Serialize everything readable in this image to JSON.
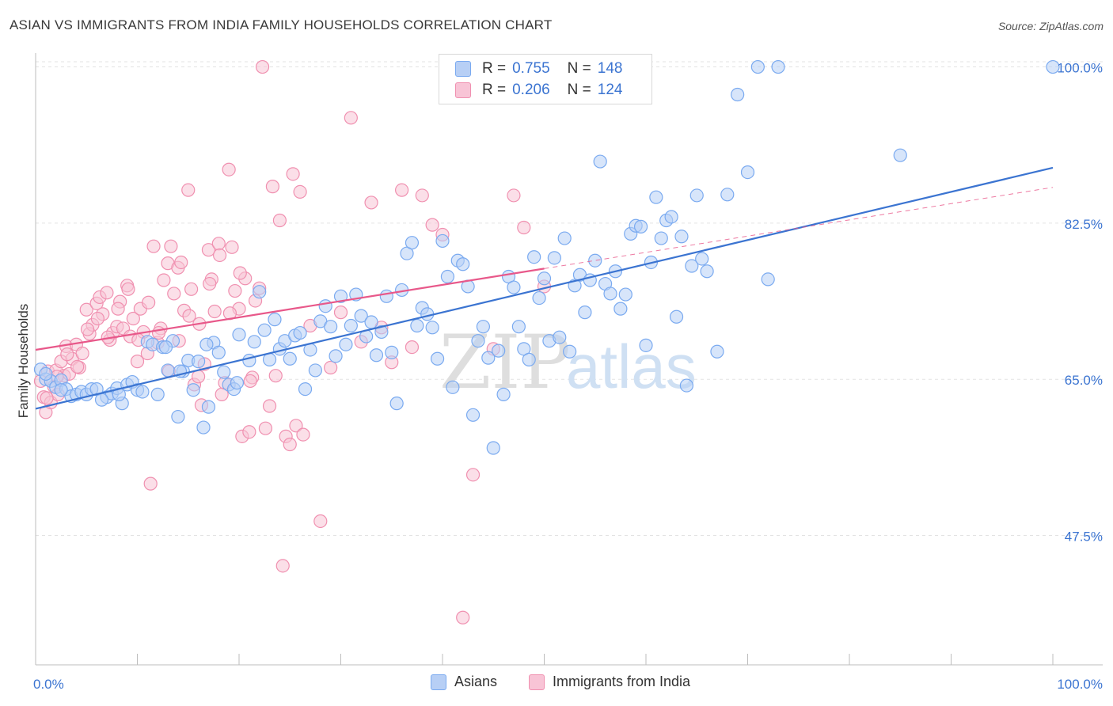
{
  "header": {
    "title": "ASIAN VS IMMIGRANTS FROM INDIA FAMILY HOUSEHOLDS CORRELATION CHART",
    "source": "Source: ZipAtlas.com"
  },
  "legend": {
    "rows": [
      {
        "r_label": "R =",
        "r_value": "0.755",
        "n_label": "N =",
        "n_value": "148",
        "color": "#7aaaf0",
        "fill": "#b7cff5"
      },
      {
        "r_label": "R =",
        "r_value": "0.206",
        "n_label": "N =",
        "n_value": "124",
        "color": "#f090b0",
        "fill": "#f8c4d6"
      }
    ]
  },
  "bottom_legend": [
    {
      "label": "Asians",
      "color": "#7aaaf0",
      "fill": "#b7cff5"
    },
    {
      "label": "Immigrants from India",
      "color": "#f090b0",
      "fill": "#f8c4d6"
    }
  ],
  "watermark": {
    "zip": "ZIP",
    "atlas": "atlas"
  },
  "chart_data": {
    "type": "scatter",
    "ylabel": "Family Households",
    "xlim": [
      0,
      100
    ],
    "ylim": [
      33,
      102
    ],
    "x_tick_labels": [
      "0.0%",
      "100.0%"
    ],
    "y_ticks": [
      47.5,
      65.0,
      82.5,
      100.0
    ],
    "y_tick_labels": [
      "47.5%",
      "65.0%",
      "82.5%",
      "100.0%"
    ],
    "grid": true,
    "series": [
      {
        "name": "Asians",
        "color": "#3b74d1",
        "point_color": "#7aaaf0",
        "trend": {
          "x0": 0,
          "y0": 61.7,
          "x1": 100,
          "y1": 88.7
        },
        "points": [
          [
            0.5,
            66.1
          ],
          [
            1,
            65
          ],
          [
            1.5,
            64.8
          ],
          [
            2,
            64.1
          ],
          [
            2.5,
            64.9
          ],
          [
            3,
            63.9
          ],
          [
            3.5,
            63.1
          ],
          [
            4,
            63.3
          ],
          [
            4.5,
            63.6
          ],
          [
            5,
            63.3
          ],
          [
            5.5,
            63.9
          ],
          [
            6,
            63.9
          ],
          [
            7,
            63
          ],
          [
            7.5,
            63.4
          ],
          [
            8,
            64
          ],
          [
            8.5,
            62.3
          ],
          [
            9,
            64.4
          ],
          [
            9.5,
            64.7
          ],
          [
            10,
            63.8
          ],
          [
            10.5,
            63.6
          ],
          [
            11,
            69.2
          ],
          [
            11.5,
            68.9
          ],
          [
            12,
            63.3
          ],
          [
            12.5,
            68.6
          ],
          [
            13,
            66
          ],
          [
            13.5,
            69.3
          ],
          [
            14,
            60.8
          ],
          [
            14.5,
            65.9
          ],
          [
            15,
            67.1
          ],
          [
            15.5,
            63.8
          ],
          [
            16,
            67
          ],
          [
            16.5,
            59.6
          ],
          [
            17,
            61.9
          ],
          [
            17.5,
            69.1
          ],
          [
            18,
            68
          ],
          [
            18.5,
            65.8
          ],
          [
            19,
            64.4
          ],
          [
            19.5,
            63.9
          ],
          [
            20,
            70
          ],
          [
            21,
            67.1
          ],
          [
            21.5,
            69.2
          ],
          [
            22,
            74.8
          ],
          [
            22.5,
            70.5
          ],
          [
            23,
            67.2
          ],
          [
            23.5,
            71.7
          ],
          [
            24,
            68.4
          ],
          [
            24.5,
            69.3
          ],
          [
            25,
            67.3
          ],
          [
            25.5,
            69.9
          ],
          [
            26,
            70.2
          ],
          [
            26.5,
            63.9
          ],
          [
            27,
            68.3
          ],
          [
            27.5,
            66
          ],
          [
            28,
            71.5
          ],
          [
            28.5,
            73.2
          ],
          [
            29,
            70.9
          ],
          [
            29.5,
            67.6
          ],
          [
            30,
            74.3
          ],
          [
            30.5,
            68.9
          ],
          [
            31,
            71
          ],
          [
            31.5,
            74.5
          ],
          [
            32,
            72.1
          ],
          [
            32.5,
            69.8
          ],
          [
            33,
            71.4
          ],
          [
            33.5,
            67.7
          ],
          [
            34,
            70.3
          ],
          [
            34.5,
            74.3
          ],
          [
            35,
            68
          ],
          [
            35.5,
            62.3
          ],
          [
            36,
            75
          ],
          [
            36.5,
            79.1
          ],
          [
            37,
            80.3
          ],
          [
            37.5,
            71
          ],
          [
            38,
            73
          ],
          [
            38.5,
            72.3
          ],
          [
            39,
            70.8
          ],
          [
            39.5,
            67.3
          ],
          [
            40,
            80.5
          ],
          [
            40.5,
            76.5
          ],
          [
            41,
            64.1
          ],
          [
            41.5,
            78.3
          ],
          [
            42,
            77.9
          ],
          [
            42.5,
            75.4
          ],
          [
            43,
            61
          ],
          [
            43.5,
            69.3
          ],
          [
            44,
            70.9
          ],
          [
            44.5,
            67.4
          ],
          [
            45,
            57.3
          ],
          [
            45.5,
            68.2
          ],
          [
            46,
            63.3
          ],
          [
            46.5,
            76.5
          ],
          [
            47,
            75.3
          ],
          [
            47.5,
            70.9
          ],
          [
            48,
            68.4
          ],
          [
            48.5,
            67.2
          ],
          [
            49,
            78.7
          ],
          [
            49.5,
            74.1
          ],
          [
            50,
            76.3
          ],
          [
            50.5,
            69.3
          ],
          [
            51,
            78.6
          ],
          [
            51.5,
            69.7
          ],
          [
            52,
            80.8
          ],
          [
            52.5,
            68.1
          ],
          [
            53,
            75.5
          ],
          [
            53.5,
            76.7
          ],
          [
            54,
            72.5
          ],
          [
            54.5,
            76.1
          ],
          [
            55,
            78.3
          ],
          [
            55.5,
            89.4
          ],
          [
            56,
            75.7
          ],
          [
            56.5,
            74.6
          ],
          [
            57,
            77.1
          ],
          [
            57.5,
            72.9
          ],
          [
            58,
            74.5
          ],
          [
            58.5,
            81.3
          ],
          [
            59,
            82.2
          ],
          [
            59.5,
            82.1
          ],
          [
            60,
            68.8
          ],
          [
            60.5,
            78.1
          ],
          [
            61,
            85.4
          ],
          [
            61.5,
            80.8
          ],
          [
            62,
            82.8
          ],
          [
            62.5,
            83.2
          ],
          [
            63,
            72
          ],
          [
            63.5,
            81
          ],
          [
            64,
            64.3
          ],
          [
            64.5,
            77.7
          ],
          [
            65,
            85.6
          ],
          [
            65.5,
            78.5
          ],
          [
            66,
            77.1
          ],
          [
            67,
            68.1
          ],
          [
            68,
            85.7
          ],
          [
            69,
            96.9
          ],
          [
            70,
            88.2
          ],
          [
            71,
            100
          ],
          [
            72,
            76.2
          ],
          [
            73,
            100
          ],
          [
            85,
            90.1
          ],
          [
            100,
            100
          ],
          [
            1,
            65.6
          ],
          [
            2.5,
            63.8
          ],
          [
            6.5,
            62.7
          ],
          [
            8.2,
            63.3
          ],
          [
            12.8,
            68.6
          ],
          [
            14.2,
            65.9
          ],
          [
            16.8,
            68.9
          ],
          [
            19.8,
            64.6
          ]
        ]
      },
      {
        "name": "Immigrants from India",
        "color": "#e8588a",
        "point_color": "#f090b0",
        "trend": {
          "x0": 0,
          "y0": 68.3,
          "x1": 50,
          "y1": 77.4
        },
        "trend_dashed": {
          "x0": 50,
          "y0": 77.4,
          "x1": 100,
          "y1": 86.5
        },
        "points": [
          [
            0.5,
            64.8
          ],
          [
            0.8,
            63
          ],
          [
            1,
            61.3
          ],
          [
            1.2,
            65.9
          ],
          [
            1.5,
            62.4
          ],
          [
            1.8,
            64.2
          ],
          [
            2,
            66
          ],
          [
            2.2,
            63.3
          ],
          [
            2.5,
            67
          ],
          [
            2.8,
            65.4
          ],
          [
            3,
            68.7
          ],
          [
            3.3,
            65.6
          ],
          [
            3.6,
            67.3
          ],
          [
            4,
            68.9
          ],
          [
            4.3,
            66.3
          ],
          [
            4.6,
            67.9
          ],
          [
            5,
            72.8
          ],
          [
            5.3,
            70.1
          ],
          [
            5.6,
            71.1
          ],
          [
            6,
            73.5
          ],
          [
            6.3,
            74.2
          ],
          [
            6.6,
            72.3
          ],
          [
            7,
            74.7
          ],
          [
            7.3,
            69.4
          ],
          [
            7.6,
            70.2
          ],
          [
            8,
            70.9
          ],
          [
            8.3,
            73.7
          ],
          [
            8.6,
            70.7
          ],
          [
            9,
            75.5
          ],
          [
            9.3,
            69.8
          ],
          [
            9.6,
            71.8
          ],
          [
            10,
            67
          ],
          [
            10.3,
            72.9
          ],
          [
            10.6,
            70.3
          ],
          [
            11,
            67.9
          ],
          [
            11.3,
            53.3
          ],
          [
            11.6,
            79.9
          ],
          [
            12,
            69.1
          ],
          [
            12.3,
            70.7
          ],
          [
            12.6,
            76.1
          ],
          [
            13,
            78
          ],
          [
            13.3,
            79.9
          ],
          [
            13.6,
            74.6
          ],
          [
            14,
            77.5
          ],
          [
            14.3,
            78.1
          ],
          [
            14.6,
            72.7
          ],
          [
            15,
            86.2
          ],
          [
            15.3,
            75.1
          ],
          [
            15.6,
            64.4
          ],
          [
            16,
            65.3
          ],
          [
            16.3,
            62.1
          ],
          [
            16.6,
            66.7
          ],
          [
            17,
            79.5
          ],
          [
            17.3,
            76.2
          ],
          [
            17.6,
            72.6
          ],
          [
            18,
            80.2
          ],
          [
            18.3,
            63.3
          ],
          [
            18.6,
            64.6
          ],
          [
            19,
            88.5
          ],
          [
            19.3,
            79.8
          ],
          [
            19.6,
            74.9
          ],
          [
            20,
            72.9
          ],
          [
            20.3,
            58.6
          ],
          [
            20.6,
            76.3
          ],
          [
            21,
            59.1
          ],
          [
            21.3,
            65.2
          ],
          [
            21.6,
            73.8
          ],
          [
            22,
            75.2
          ],
          [
            22.3,
            100
          ],
          [
            22.6,
            59.5
          ],
          [
            23,
            62
          ],
          [
            23.3,
            86.6
          ],
          [
            23.6,
            65.4
          ],
          [
            24,
            82.8
          ],
          [
            24.3,
            44.1
          ],
          [
            24.6,
            58.6
          ],
          [
            25,
            57.7
          ],
          [
            25.3,
            88
          ],
          [
            25.6,
            59.8
          ],
          [
            26,
            86
          ],
          [
            26.3,
            58.8
          ],
          [
            27,
            71
          ],
          [
            28,
            49.1
          ],
          [
            29,
            66.3
          ],
          [
            30,
            72.5
          ],
          [
            31,
            94.3
          ],
          [
            32,
            69.2
          ],
          [
            33,
            84.8
          ],
          [
            34,
            70.8
          ],
          [
            35,
            66.9
          ],
          [
            36,
            86.2
          ],
          [
            37,
            68.6
          ],
          [
            38,
            85.6
          ],
          [
            39,
            82.3
          ],
          [
            40,
            81.2
          ],
          [
            42,
            38.3
          ],
          [
            43,
            54.3
          ],
          [
            45,
            68.4
          ],
          [
            47,
            85.6
          ],
          [
            48,
            82
          ],
          [
            50,
            75.4
          ],
          [
            1.1,
            62.9
          ],
          [
            2.1,
            65.3
          ],
          [
            3.1,
            67.8
          ],
          [
            4.1,
            66.4
          ],
          [
            5.1,
            70.6
          ],
          [
            6.1,
            71.8
          ],
          [
            7.1,
            69.7
          ],
          [
            8.1,
            72.9
          ],
          [
            9.1,
            75.1
          ],
          [
            10.1,
            69.4
          ],
          [
            11.1,
            73.6
          ],
          [
            12.1,
            70.2
          ],
          [
            13.1,
            65.9
          ],
          [
            14.1,
            69.3
          ],
          [
            15.1,
            72.1
          ],
          [
            16.1,
            71.2
          ],
          [
            17.1,
            75.7
          ],
          [
            18.1,
            78.9
          ],
          [
            19.1,
            72.4
          ],
          [
            20.1,
            76.9
          ],
          [
            21.1,
            64.8
          ]
        ]
      }
    ]
  }
}
